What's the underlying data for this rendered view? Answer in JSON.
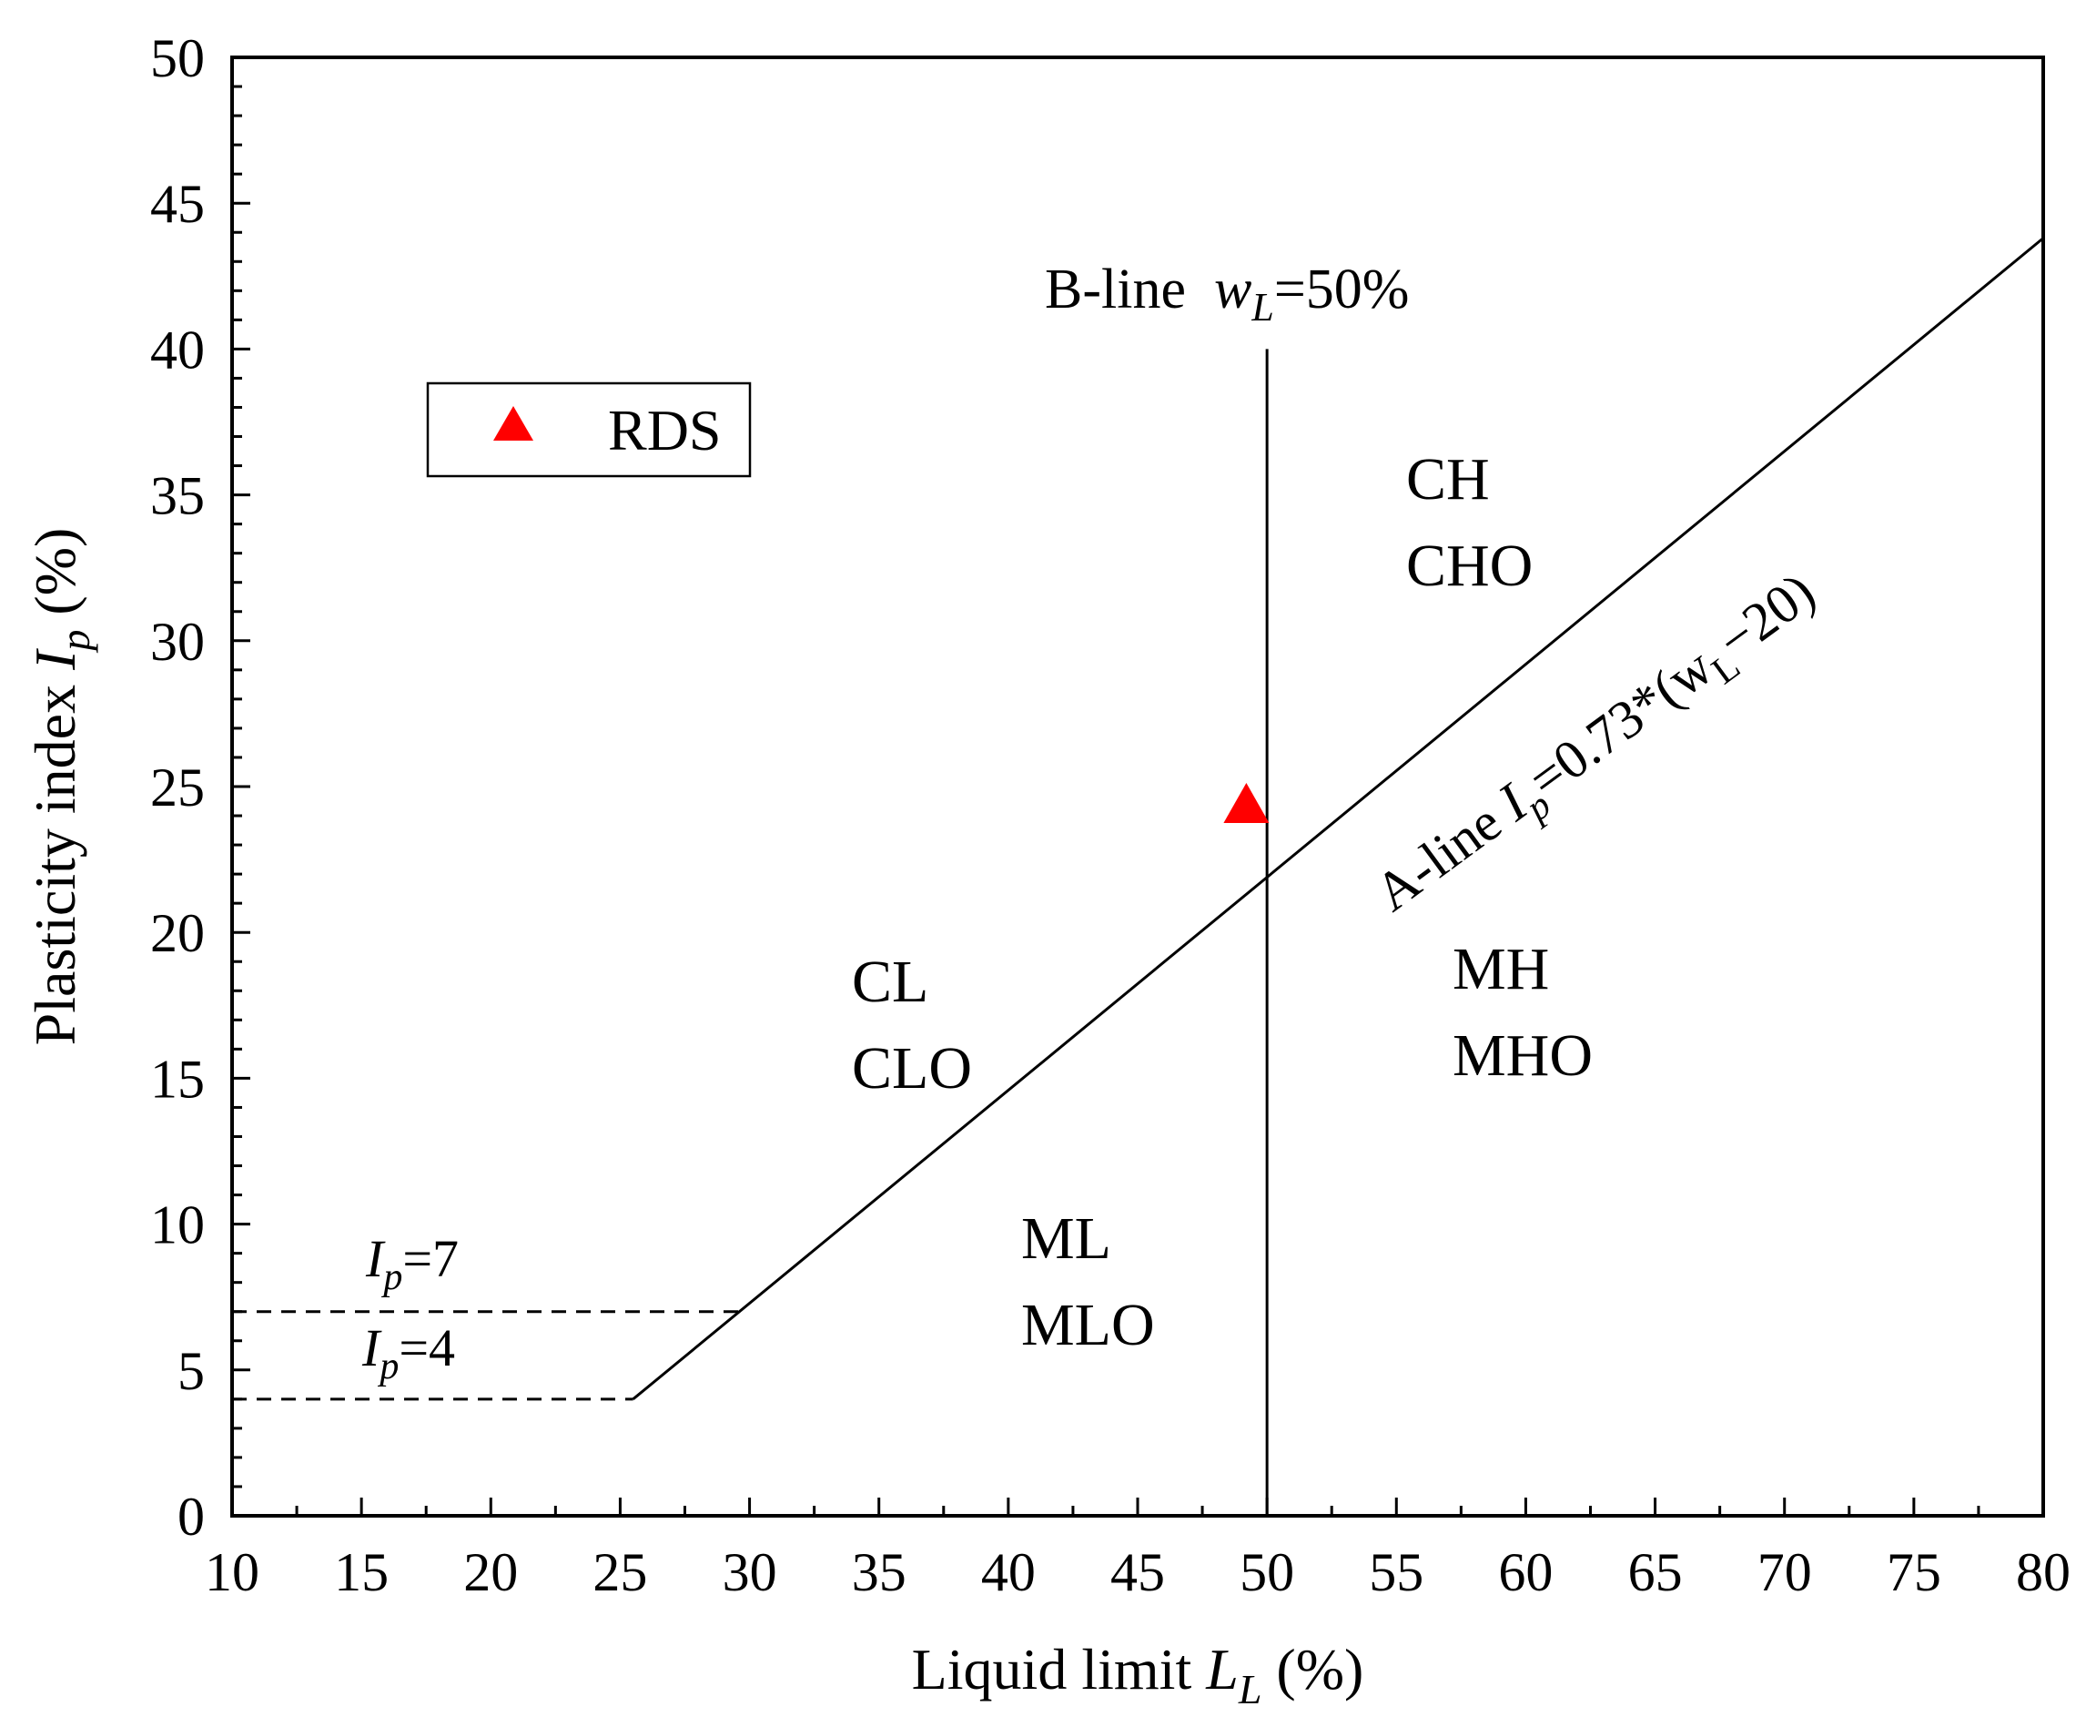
{
  "chart_data": {
    "type": "scatter",
    "title": "",
    "xlabel": {
      "text": "Liquid limit ",
      "italic": "L",
      "sub": "L",
      "suffix": " (%)"
    },
    "ylabel": {
      "text": "Plasticity index ",
      "italic": "I",
      "sub": "p",
      "suffix": " (%)"
    },
    "xlim": [
      10,
      80
    ],
    "ylim": [
      0,
      50
    ],
    "xticks": [
      10,
      15,
      20,
      25,
      30,
      35,
      40,
      45,
      50,
      55,
      60,
      65,
      70,
      75,
      80
    ],
    "yticks": [
      0,
      5,
      10,
      15,
      20,
      25,
      30,
      35,
      40,
      45,
      50
    ],
    "grid": false,
    "series": [
      {
        "name": "RDS",
        "marker": "triangle",
        "color": "#ff0000",
        "points": [
          {
            "x": 49.2,
            "y": 24.3
          }
        ]
      }
    ],
    "reference_lines": {
      "a_line": {
        "formula": "Ip = 0.73*(wL-20)",
        "slope": 0.73,
        "offset": 20,
        "x_start": 25.5,
        "x_end": 80
      },
      "b_line": {
        "x": 50,
        "y_top": 40
      },
      "ip7": {
        "y": 7,
        "x_from": 10,
        "x_to": 29.6,
        "style": "dashed"
      },
      "ip4": {
        "y": 4,
        "x_from": 10,
        "x_to": 25.5,
        "style": "dashed"
      }
    },
    "annotations": {
      "b_line": {
        "prefix": "B-line  ",
        "var": "w",
        "sub": "L",
        "suffix": "=50%"
      },
      "a_line": {
        "prefix": "A-line ",
        "var": "I",
        "sub": "p",
        "formula_mid": "=0.73*(w",
        "formula_sub": "L",
        "formula_end": "−20)"
      },
      "ip7": {
        "var": "I",
        "sub": "p",
        "suffix": "=7"
      },
      "ip4": {
        "var": "I",
        "sub": "p",
        "suffix": "=4"
      }
    },
    "regions": {
      "ch": [
        "CH",
        "CHO"
      ],
      "cl": [
        "CL",
        "CLO"
      ],
      "mh": [
        "MH",
        "MHO"
      ],
      "ml": [
        "ML",
        "MLO"
      ]
    },
    "legend": {
      "position": "top-left",
      "entries": [
        "RDS"
      ]
    }
  }
}
